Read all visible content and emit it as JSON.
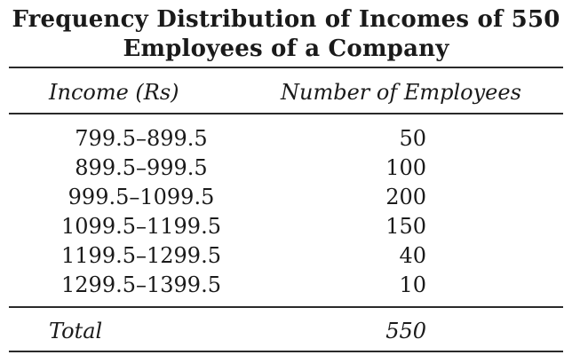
{
  "title": {
    "line1": "Frequency Distribution of Incomes of 550",
    "line2": "Employees of a Company"
  },
  "table": {
    "headers": {
      "income": "Income (Rs)",
      "count": "Number of Employees"
    },
    "rows": [
      {
        "income": "799.5–899.5",
        "count": "50"
      },
      {
        "income": "899.5–999.5",
        "count": "100"
      },
      {
        "income": "999.5–1099.5",
        "count": "200"
      },
      {
        "income": "1099.5–1199.5",
        "count": "150"
      },
      {
        "income": "1199.5–1299.5",
        "count": "40"
      },
      {
        "income": "1299.5–1399.5",
        "count": "10"
      }
    ],
    "total": {
      "label": "Total",
      "value": "550"
    }
  }
}
